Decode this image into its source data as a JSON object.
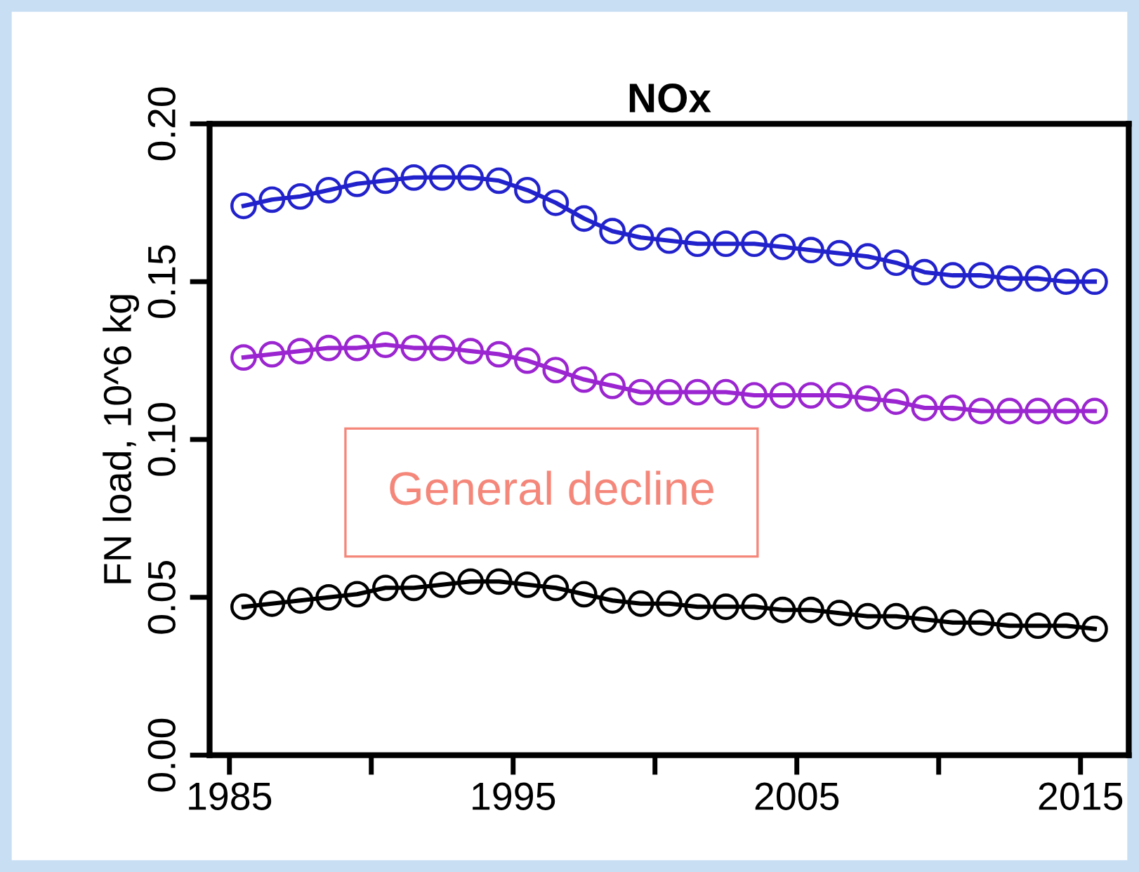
{
  "chart_data": {
    "type": "line",
    "title": "NOx",
    "ylabel": "FN load, 10^6 kg",
    "x": [
      1985.5,
      1986.5,
      1987.5,
      1988.5,
      1989.5,
      1990.5,
      1991.5,
      1992.5,
      1993.5,
      1994.5,
      1995.5,
      1996.5,
      1997.5,
      1998.5,
      1999.5,
      2000.5,
      2001.5,
      2002.5,
      2003.5,
      2004.5,
      2005.5,
      2006.5,
      2007.5,
      2008.5,
      2009.5,
      2010.5,
      2011.5,
      2012.5,
      2013.5,
      2014.5,
      2015.5
    ],
    "series": [
      {
        "color": "#2222cc",
        "values": [
          0.174,
          0.176,
          0.177,
          0.179,
          0.181,
          0.182,
          0.183,
          0.183,
          0.183,
          0.182,
          0.179,
          0.175,
          0.17,
          0.166,
          0.164,
          0.163,
          0.162,
          0.162,
          0.162,
          0.161,
          0.16,
          0.159,
          0.158,
          0.156,
          0.153,
          0.152,
          0.152,
          0.151,
          0.151,
          0.15,
          0.15
        ]
      },
      {
        "color": "#9b25d0",
        "values": [
          0.126,
          0.127,
          0.128,
          0.129,
          0.129,
          0.13,
          0.129,
          0.129,
          0.128,
          0.127,
          0.125,
          0.122,
          0.119,
          0.117,
          0.115,
          0.115,
          0.115,
          0.115,
          0.114,
          0.114,
          0.114,
          0.114,
          0.113,
          0.112,
          0.11,
          0.11,
          0.109,
          0.109,
          0.109,
          0.109,
          0.109
        ]
      },
      {
        "color": "#000000",
        "values": [
          0.047,
          0.048,
          0.049,
          0.05,
          0.051,
          0.053,
          0.053,
          0.054,
          0.055,
          0.055,
          0.054,
          0.053,
          0.051,
          0.049,
          0.048,
          0.048,
          0.047,
          0.047,
          0.047,
          0.046,
          0.046,
          0.045,
          0.044,
          0.044,
          0.043,
          0.042,
          0.042,
          0.041,
          0.041,
          0.041,
          0.04
        ]
      }
    ],
    "xlim": [
      1984.3,
      2016.7
    ],
    "ylim": [
      0,
      0.2
    ],
    "xticks": [
      1985,
      {
        "value": 1990,
        "label": null
      },
      1995,
      {
        "value": 2000,
        "label": null
      },
      2005,
      {
        "value": 2010,
        "label": null
      },
      2015
    ],
    "yticks": [
      {
        "value": 0,
        "label": "0.00"
      },
      {
        "value": 0.05,
        "label": "0.05"
      },
      {
        "value": 0.1,
        "label": "0.10"
      },
      {
        "value": 0.15,
        "label": "0.15"
      },
      {
        "value": 0.2,
        "label": "0.20"
      }
    ],
    "annotations": [
      "General decline"
    ],
    "marker": "circle",
    "line_style": "solid",
    "grid": false,
    "legend": false
  }
}
